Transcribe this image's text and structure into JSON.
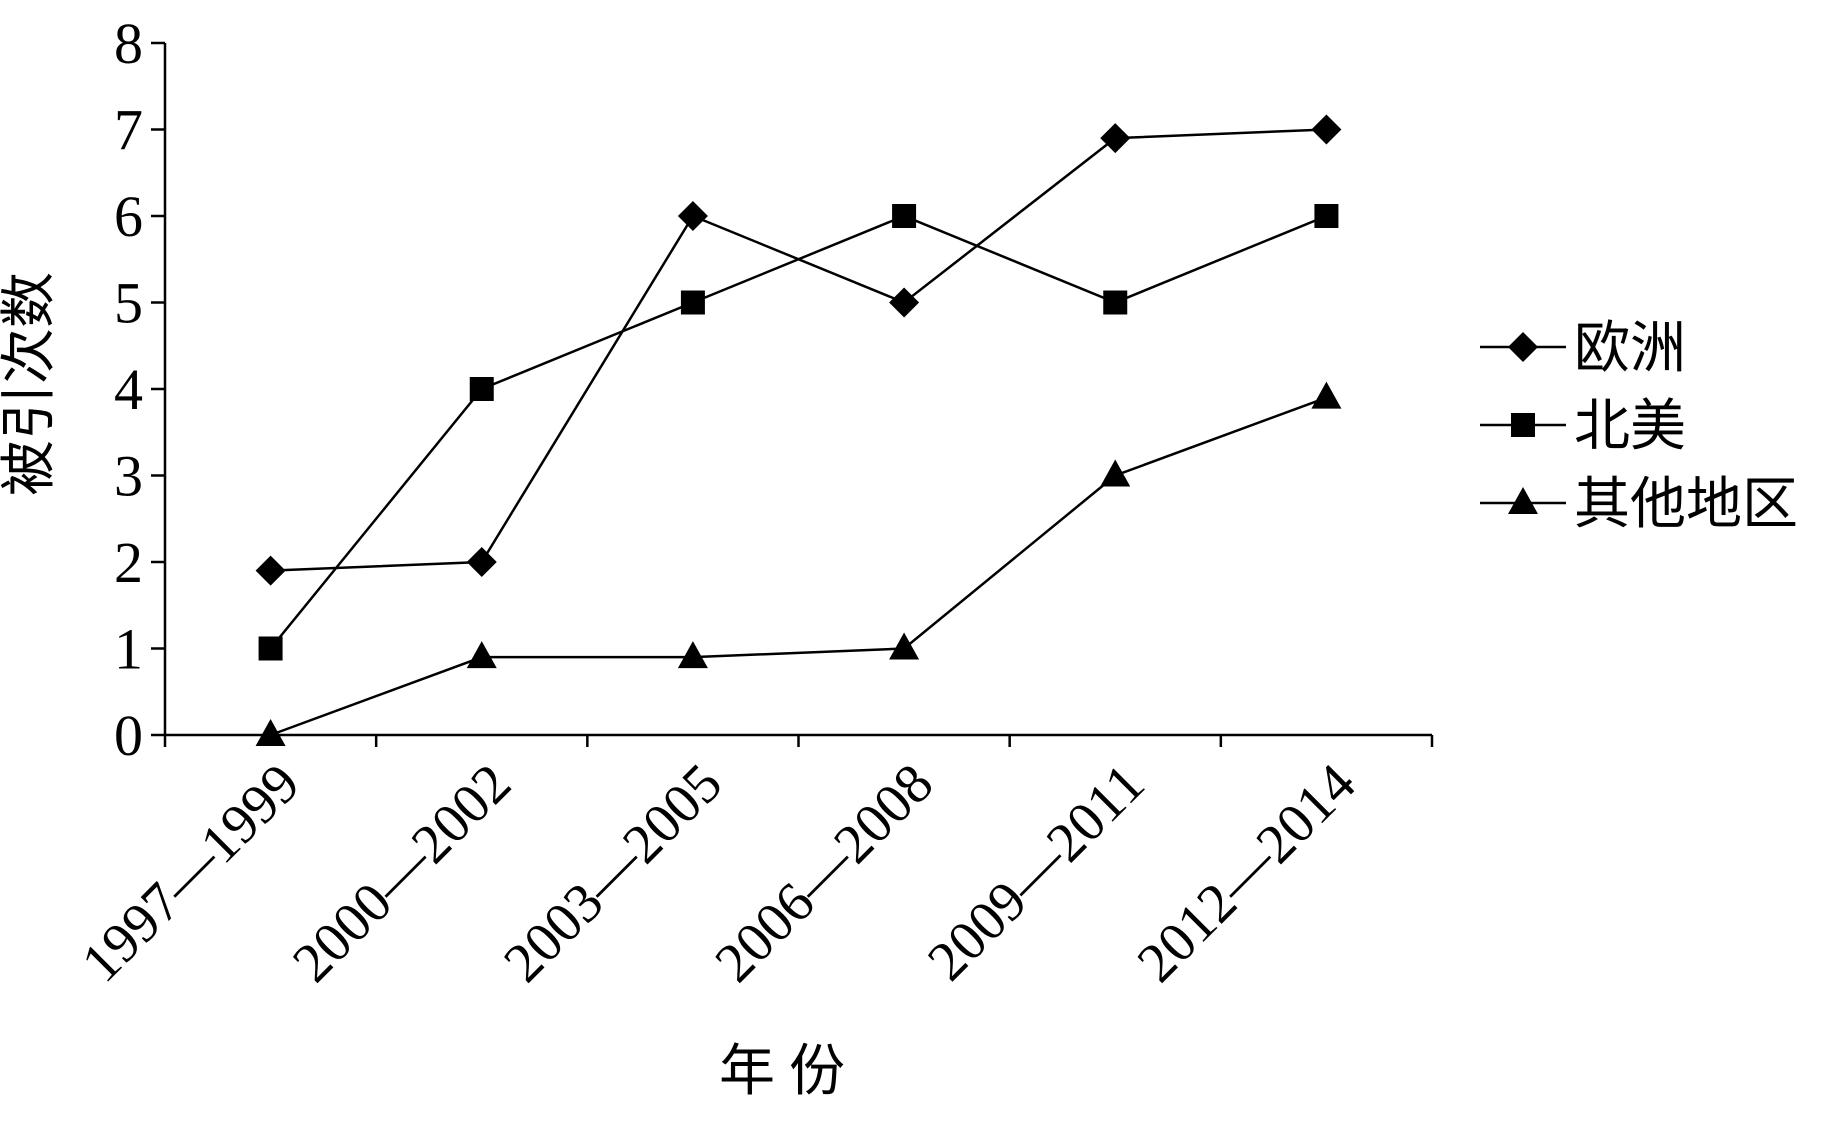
{
  "chart_data": {
    "type": "line",
    "x_label": "年 份",
    "y_label": "被引次数",
    "categories": [
      "1997—1999",
      "2000—2002",
      "2003—2005",
      "2006—2008",
      "2009—2011",
      "2012—2014"
    ],
    "series": [
      {
        "name": "欧洲",
        "color": "#000000",
        "marker": "diamond",
        "values": [
          1.9,
          2,
          6,
          5,
          6.9,
          7
        ]
      },
      {
        "name": "北美",
        "color": "#000000",
        "marker": "square",
        "values": [
          1,
          4,
          5,
          6,
          5,
          6
        ]
      },
      {
        "name": "其他地区",
        "color": "#000000",
        "marker": "triangle",
        "values": [
          0,
          0.9,
          0.9,
          1,
          3,
          3.9
        ]
      }
    ],
    "ylim": [
      0,
      8
    ],
    "yticks": [
      0,
      1,
      2,
      3,
      4,
      5,
      6,
      7,
      8
    ],
    "grid": false,
    "legend": "right"
  }
}
